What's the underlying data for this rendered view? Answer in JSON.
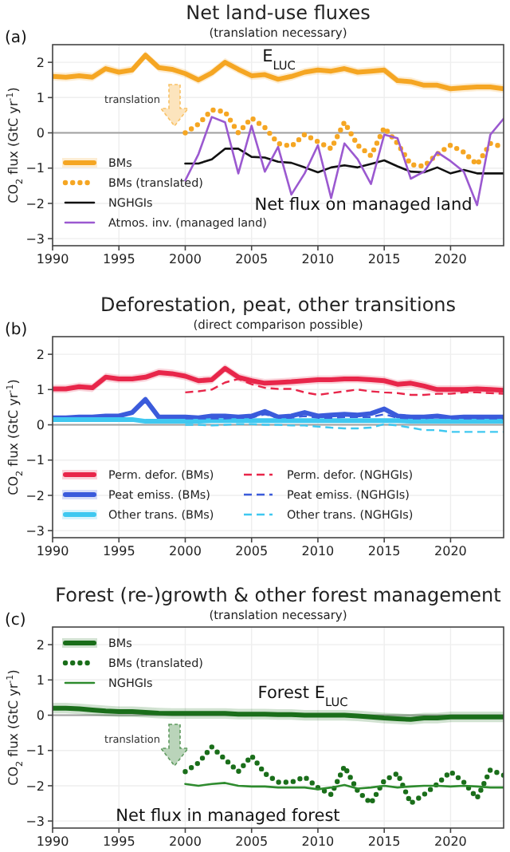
{
  "chart_data": [
    {
      "type": "line",
      "title": "Net land-use fluxes",
      "subtitle": "(translation necessary)",
      "ylabel": "CO$_{2}$ flux (GtC yr$^{-1}$)",
      "xlim": [
        1990,
        2024
      ],
      "ylim": [
        -3.2,
        2.5
      ],
      "xticks": [
        1990,
        1995,
        2000,
        2005,
        2010,
        2015,
        2020
      ],
      "yticks": [
        {
          "value": -3,
          "label": "−3"
        },
        {
          "value": -2,
          "label": "−2"
        },
        {
          "value": -1,
          "label": "−1"
        },
        0,
        1,
        2
      ],
      "grid": true,
      "legend": "bottom left",
      "ref_lines": [
        {
          "axis": "y",
          "value": 0,
          "color": "#a0a0a0"
        }
      ],
      "annotations": [
        "(a)",
        "translation",
        "E$_{LUC}$",
        "Net flux on managed land"
      ],
      "x": [
        1990,
        1991,
        1992,
        1993,
        1994,
        1995,
        1996,
        1997,
        1998,
        1999,
        2000,
        2001,
        2002,
        2003,
        2004,
        2005,
        2006,
        2007,
        2008,
        2009,
        2010,
        2011,
        2012,
        2013,
        2014,
        2015,
        2016,
        2017,
        2018,
        2019,
        2020,
        2021,
        2022,
        2023,
        2024
      ],
      "series": [
        {
          "name": "BMs",
          "color": "#f5a623",
          "line_style": "solid",
          "values": [
            1.6,
            1.58,
            1.62,
            1.58,
            1.82,
            1.72,
            1.78,
            2.2,
            1.85,
            1.8,
            1.68,
            1.5,
            1.7,
            2.0,
            1.8,
            1.62,
            1.65,
            1.52,
            1.6,
            1.72,
            1.78,
            1.75,
            1.82,
            1.72,
            1.75,
            1.78,
            1.48,
            1.45,
            1.35,
            1.35,
            1.25,
            1.28,
            1.3,
            1.3,
            1.25
          ],
          "lower": [
            1.48,
            1.46,
            1.5,
            1.46,
            1.7,
            1.6,
            1.66,
            2.08,
            1.73,
            1.68,
            1.56,
            1.38,
            1.58,
            1.88,
            1.68,
            1.5,
            1.53,
            1.4,
            1.48,
            1.6,
            1.66,
            1.63,
            1.7,
            1.6,
            1.63,
            1.66,
            1.36,
            1.33,
            1.23,
            1.23,
            1.13,
            1.16,
            1.18,
            1.18,
            1.13
          ],
          "upper": [
            1.72,
            1.7,
            1.74,
            1.7,
            1.94,
            1.84,
            1.9,
            2.32,
            1.97,
            1.92,
            1.8,
            1.62,
            1.82,
            2.12,
            1.92,
            1.74,
            1.77,
            1.64,
            1.72,
            1.84,
            1.9,
            1.87,
            1.94,
            1.84,
            1.87,
            1.9,
            1.6,
            1.57,
            1.47,
            1.47,
            1.37,
            1.4,
            1.42,
            1.42,
            1.37
          ]
        },
        {
          "name": "BMs (translated)",
          "color": "#f5a623",
          "line_style": "dotted",
          "x": [
            2000,
            2001,
            2002,
            2003,
            2004,
            2005,
            2006,
            2007,
            2008,
            2009,
            2010,
            2011,
            2012,
            2013,
            2014,
            2015,
            2016,
            2017,
            2018,
            2019,
            2020,
            2021,
            2022,
            2023,
            2024
          ],
          "values": [
            0.0,
            0.25,
            0.65,
            0.6,
            0.0,
            0.42,
            0.15,
            -0.3,
            -0.38,
            -0.05,
            -0.25,
            -0.45,
            0.3,
            -0.35,
            -0.65,
            0.15,
            -0.3,
            -0.9,
            -0.95,
            -0.6,
            -0.35,
            -0.55,
            -0.9,
            -0.3,
            -0.4
          ]
        },
        {
          "name": "NGHGIs",
          "color": "#111111",
          "line_style": "solid",
          "x": [
            2000,
            2001,
            2002,
            2003,
            2004,
            2005,
            2006,
            2007,
            2008,
            2009,
            2010,
            2011,
            2012,
            2013,
            2014,
            2015,
            2016,
            2017,
            2018,
            2019,
            2020,
            2021,
            2022,
            2023,
            2024
          ],
          "values": [
            -0.87,
            -0.87,
            -0.75,
            -0.45,
            -0.45,
            -0.68,
            -0.7,
            -0.82,
            -0.85,
            -0.98,
            -1.12,
            -0.98,
            -0.92,
            -0.98,
            -0.88,
            -0.78,
            -0.95,
            -1.1,
            -1.12,
            -0.98,
            -1.15,
            -1.05,
            -1.15,
            -1.15,
            -1.15
          ]
        },
        {
          "name": "Atmos. inv. (managed land)",
          "color": "#9b59d0",
          "line_style": "solid",
          "x": [
            2000,
            2001,
            2002,
            2003,
            2004,
            2005,
            2006,
            2007,
            2008,
            2009,
            2010,
            2011,
            2012,
            2013,
            2014,
            2015,
            2016,
            2017,
            2018,
            2019,
            2020,
            2021,
            2022,
            2023,
            2024
          ],
          "values": [
            -1.35,
            -0.6,
            0.45,
            0.3,
            -1.15,
            0.2,
            -1.1,
            -0.4,
            -1.75,
            -1.15,
            -0.35,
            -1.85,
            -0.3,
            -0.75,
            -1.45,
            -0.05,
            -0.15,
            -1.3,
            -1.1,
            -0.55,
            -0.8,
            -1.1,
            -2.05,
            -0.05,
            0.4
          ]
        }
      ]
    },
    {
      "type": "line",
      "title": "Deforestation, peat, other transitions",
      "subtitle": "(direct comparison possible)",
      "ylabel": "CO$_{2}$ flux (GtC yr$^{-1}$)",
      "xlim": [
        1990,
        2024
      ],
      "ylim": [
        -3.2,
        2.5
      ],
      "xticks": [
        1990,
        1995,
        2000,
        2005,
        2010,
        2015,
        2020
      ],
      "yticks": [
        {
          "value": -3,
          "label": "−3"
        },
        {
          "value": -2,
          "label": "−2"
        },
        {
          "value": -1,
          "label": "−1"
        },
        0,
        1,
        2
      ],
      "grid": true,
      "legend": "bottom",
      "ref_lines": [
        {
          "axis": "y",
          "value": 0,
          "color": "#a0a0a0"
        }
      ],
      "annotations": [
        "(b)"
      ],
      "x": [
        1990,
        1991,
        1992,
        1993,
        1994,
        1995,
        1996,
        1997,
        1998,
        1999,
        2000,
        2001,
        2002,
        2003,
        2004,
        2005,
        2006,
        2007,
        2008,
        2009,
        2010,
        2011,
        2012,
        2013,
        2014,
        2015,
        2016,
        2017,
        2018,
        2019,
        2020,
        2021,
        2022,
        2023,
        2024
      ],
      "series": [
        {
          "name": "Perm. defor. (BMs)",
          "color": "#e8264a",
          "line_style": "solid",
          "values": [
            1.02,
            1.02,
            1.08,
            1.05,
            1.35,
            1.3,
            1.3,
            1.35,
            1.48,
            1.45,
            1.38,
            1.25,
            1.28,
            1.6,
            1.35,
            1.25,
            1.18,
            1.2,
            1.22,
            1.25,
            1.28,
            1.28,
            1.3,
            1.3,
            1.28,
            1.25,
            1.15,
            1.18,
            1.1,
            1.0,
            1.0,
            1.0,
            1.02,
            1.0,
            0.98
          ],
          "lower": [
            0.9,
            0.9,
            0.96,
            0.93,
            1.23,
            1.18,
            1.18,
            1.23,
            1.36,
            1.33,
            1.26,
            1.13,
            1.16,
            1.48,
            1.23,
            1.13,
            1.06,
            1.08,
            1.1,
            1.13,
            1.16,
            1.16,
            1.18,
            1.18,
            1.16,
            1.13,
            1.03,
            1.06,
            0.98,
            0.88,
            0.88,
            0.88,
            0.9,
            0.88,
            0.86
          ],
          "upper": [
            1.14,
            1.14,
            1.2,
            1.17,
            1.47,
            1.42,
            1.42,
            1.47,
            1.6,
            1.57,
            1.5,
            1.37,
            1.4,
            1.72,
            1.47,
            1.37,
            1.3,
            1.32,
            1.34,
            1.37,
            1.4,
            1.4,
            1.42,
            1.42,
            1.4,
            1.37,
            1.27,
            1.3,
            1.22,
            1.12,
            1.12,
            1.12,
            1.14,
            1.12,
            1.1
          ]
        },
        {
          "name": "Peat emiss. (BMs)",
          "color": "#3b5bdb",
          "line_style": "solid",
          "values": [
            0.2,
            0.2,
            0.22,
            0.22,
            0.25,
            0.25,
            0.35,
            0.72,
            0.22,
            0.22,
            0.22,
            0.2,
            0.25,
            0.25,
            0.22,
            0.25,
            0.38,
            0.22,
            0.25,
            0.35,
            0.25,
            0.28,
            0.3,
            0.28,
            0.32,
            0.45,
            0.25,
            0.22,
            0.22,
            0.25,
            0.2,
            0.22,
            0.22,
            0.22,
            0.22
          ]
        },
        {
          "name": "Other trans. (BMs)",
          "color": "#3fc8f0",
          "line_style": "solid",
          "values": [
            0.15,
            0.15,
            0.15,
            0.15,
            0.15,
            0.15,
            0.15,
            0.1,
            0.1,
            0.1,
            0.1,
            0.1,
            0.12,
            0.12,
            0.12,
            0.12,
            0.12,
            0.12,
            0.12,
            0.12,
            0.12,
            0.12,
            0.12,
            0.12,
            0.12,
            0.12,
            0.12,
            0.1,
            0.1,
            0.1,
            0.1,
            0.1,
            0.1,
            0.1,
            0.1
          ]
        },
        {
          "name": "Perm. defor. (NGHGIs)",
          "color": "#e8264a",
          "line_style": "dashed",
          "x": [
            2000,
            2001,
            2002,
            2003,
            2004,
            2005,
            2006,
            2007,
            2008,
            2009,
            2010,
            2011,
            2012,
            2013,
            2014,
            2015,
            2016,
            2017,
            2018,
            2019,
            2020,
            2021,
            2022,
            2023,
            2024
          ],
          "values": [
            0.92,
            0.95,
            1.0,
            1.2,
            1.3,
            1.15,
            1.05,
            1.02,
            1.02,
            0.92,
            0.85,
            0.9,
            0.95,
            1.0,
            0.95,
            0.92,
            0.9,
            0.85,
            0.85,
            0.88,
            0.88,
            0.92,
            0.92,
            0.9,
            0.88
          ]
        },
        {
          "name": "Peat emiss. (NGHGIs)",
          "color": "#3b5bdb",
          "line_style": "dashed",
          "x": [
            2000,
            2001,
            2002,
            2003,
            2004,
            2005,
            2006,
            2007,
            2008,
            2009,
            2010,
            2011,
            2012,
            2013,
            2014,
            2015,
            2016,
            2017,
            2018,
            2019,
            2020,
            2021,
            2022,
            2023,
            2024
          ],
          "values": [
            0.18,
            0.18,
            0.18,
            0.18,
            0.2,
            0.2,
            0.3,
            0.2,
            0.2,
            0.25,
            0.2,
            0.2,
            0.22,
            0.22,
            0.22,
            0.3,
            0.2,
            0.18,
            0.18,
            0.22,
            0.18,
            0.18,
            0.18,
            0.18,
            0.18
          ]
        },
        {
          "name": "Other trans. (NGHGIs)",
          "color": "#3fc8f0",
          "line_style": "dashed",
          "x": [
            2000,
            2001,
            2002,
            2003,
            2004,
            2005,
            2006,
            2007,
            2008,
            2009,
            2010,
            2011,
            2012,
            2013,
            2014,
            2015,
            2016,
            2017,
            2018,
            2019,
            2020,
            2021,
            2022,
            2023,
            2024
          ],
          "values": [
            0.0,
            0.0,
            -0.02,
            0.0,
            0.02,
            0.02,
            0.0,
            0.0,
            -0.02,
            -0.02,
            -0.05,
            -0.08,
            -0.1,
            -0.1,
            -0.08,
            0.02,
            -0.02,
            -0.08,
            -0.15,
            -0.15,
            -0.2,
            -0.2,
            -0.2,
            -0.2,
            -0.2
          ]
        }
      ]
    },
    {
      "type": "line",
      "title": "Forest (re-)growth & other forest management",
      "subtitle": "(translation necessary)",
      "ylabel": "CO$_{2}$ flux (GtC yr$^{-1}$)",
      "xlim": [
        1990,
        2024
      ],
      "ylim": [
        -3.2,
        2.5
      ],
      "xticks": [
        1990,
        1995,
        2000,
        2005,
        2010,
        2015,
        2020
      ],
      "yticks": [
        {
          "value": -3,
          "label": "−3"
        },
        {
          "value": -2,
          "label": "−2"
        },
        {
          "value": -1,
          "label": "−1"
        },
        0,
        1,
        2
      ],
      "grid": true,
      "legend": "top left",
      "ref_lines": [
        {
          "axis": "y",
          "value": 0,
          "color": "#a0a0a0"
        }
      ],
      "annotations": [
        "(c)",
        "translation",
        "Forest E$_{LUC}$",
        "Net flux in managed forest"
      ],
      "x": [
        1990,
        1991,
        1992,
        1993,
        1994,
        1995,
        1996,
        1997,
        1998,
        1999,
        2000,
        2001,
        2002,
        2003,
        2004,
        2005,
        2006,
        2007,
        2008,
        2009,
        2010,
        2011,
        2012,
        2013,
        2014,
        2015,
        2016,
        2017,
        2018,
        2019,
        2020,
        2021,
        2022,
        2023,
        2024
      ],
      "series": [
        {
          "name": "BMs",
          "color": "#1a6e1a",
          "line_style": "solid",
          "values": [
            0.2,
            0.2,
            0.18,
            0.15,
            0.12,
            0.1,
            0.1,
            0.08,
            0.06,
            0.05,
            0.05,
            0.05,
            0.05,
            0.05,
            0.03,
            0.03,
            0.03,
            0.02,
            0.02,
            0.0,
            0.0,
            0.0,
            0.0,
            -0.02,
            -0.05,
            -0.08,
            -0.1,
            -0.12,
            -0.08,
            -0.08,
            -0.05,
            -0.05,
            -0.05,
            -0.05,
            -0.05
          ],
          "lower": [
            0.05,
            0.05,
            0.03,
            0,
            -0.03,
            -0.05,
            -0.05,
            -0.07,
            -0.09,
            -0.1,
            -0.1,
            -0.1,
            -0.1,
            -0.1,
            -0.12,
            -0.12,
            -0.12,
            -0.13,
            -0.13,
            -0.15,
            -0.15,
            -0.15,
            -0.15,
            -0.17,
            -0.2,
            -0.23,
            -0.25,
            -0.27,
            -0.23,
            -0.23,
            -0.2,
            -0.2,
            -0.2,
            -0.2,
            -0.2
          ],
          "upper": [
            0.35,
            0.35,
            0.33,
            0.3,
            0.27,
            0.25,
            0.25,
            0.23,
            0.21,
            0.2,
            0.2,
            0.2,
            0.2,
            0.2,
            0.18,
            0.18,
            0.18,
            0.17,
            0.17,
            0.15,
            0.15,
            0.15,
            0.15,
            0.13,
            0.1,
            0.07,
            0.05,
            0.03,
            0.07,
            0.07,
            0.1,
            0.1,
            0.1,
            0.1,
            0.1
          ]
        },
        {
          "name": "BMs (translated)",
          "color": "#1a6e1a",
          "line_style": "dotted",
          "x": [
            2000,
            2001,
            2002,
            2003,
            2004,
            2005,
            2006,
            2007,
            2008,
            2009,
            2010,
            2011,
            2012,
            2013,
            2014,
            2015,
            2016,
            2017,
            2018,
            2019,
            2020,
            2021,
            2022,
            2023,
            2024
          ],
          "values": [
            -1.6,
            -1.35,
            -0.9,
            -1.25,
            -1.6,
            -1.15,
            -1.65,
            -1.9,
            -1.9,
            -1.75,
            -2.05,
            -2.25,
            -1.45,
            -2.15,
            -2.5,
            -1.85,
            -1.65,
            -2.5,
            -2.25,
            -1.95,
            -1.6,
            -1.9,
            -2.35,
            -1.55,
            -1.7
          ]
        },
        {
          "name": "NGHGIs",
          "color": "#2e8b2e",
          "line_style": "solid",
          "x": [
            2000,
            2001,
            2002,
            2003,
            2004,
            2005,
            2006,
            2007,
            2008,
            2009,
            2010,
            2011,
            2012,
            2013,
            2014,
            2015,
            2016,
            2017,
            2018,
            2019,
            2020,
            2021,
            2022,
            2023,
            2024
          ],
          "values": [
            -1.95,
            -2.0,
            -1.95,
            -1.92,
            -2.0,
            -2.02,
            -2.02,
            -2.05,
            -2.05,
            -2.05,
            -2.1,
            -2.05,
            -1.98,
            -2.08,
            -2.05,
            -2.0,
            -2.05,
            -2.02,
            -2.0,
            -2.0,
            -2.02,
            -2.0,
            -2.02,
            -2.05,
            -2.05
          ]
        }
      ]
    }
  ]
}
